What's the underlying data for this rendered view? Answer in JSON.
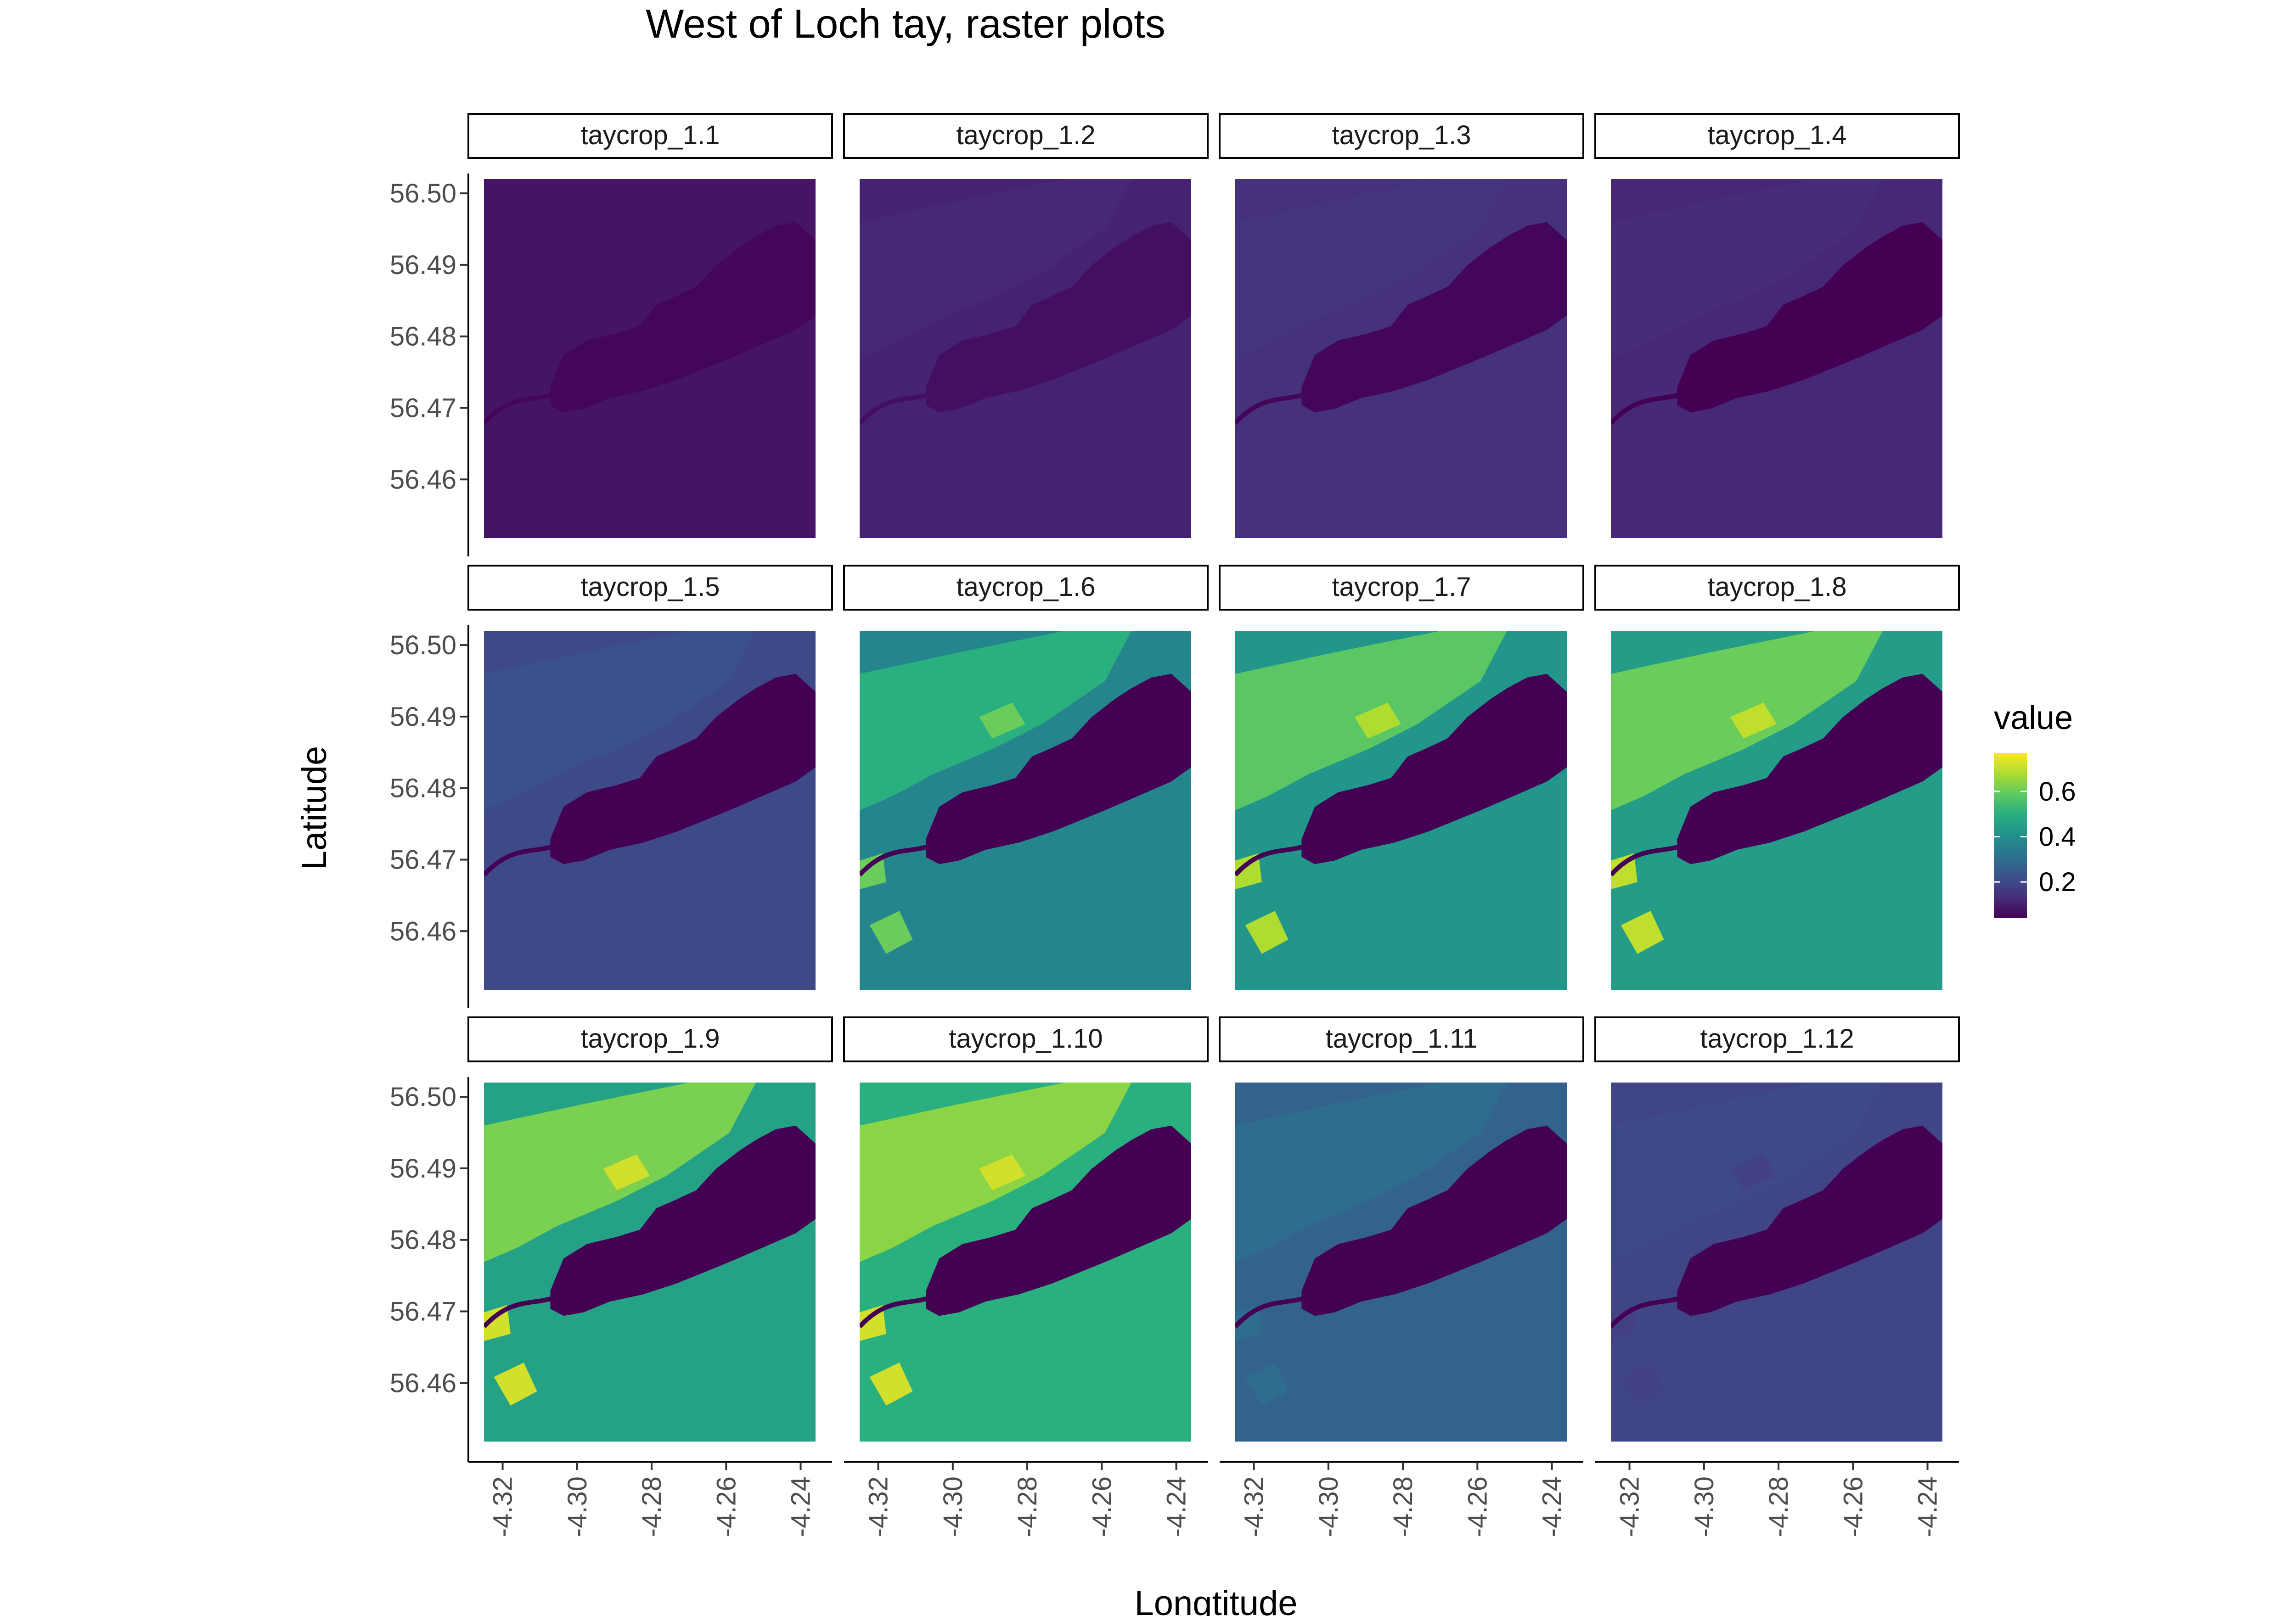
{
  "chart_data": {
    "type": "heatmap",
    "title": "West of Loch tay, raster plots",
    "xlabel": "Longtitude",
    "ylabel": "Latitude",
    "xlim": [
      -4.325,
      -4.236
    ],
    "ylim": [
      56.4518,
      56.502
    ],
    "x_ticks": [
      -4.32,
      -4.3,
      -4.28,
      -4.26,
      -4.24
    ],
    "x_tick_labels": [
      "-4.32",
      "-4.30",
      "-4.28",
      "-4.26",
      "-4.24"
    ],
    "y_ticks": [
      56.46,
      56.47,
      56.48,
      56.49,
      56.5
    ],
    "y_tick_labels": [
      "56.46",
      "56.47",
      "56.48",
      "56.49",
      "56.50"
    ],
    "grid": false,
    "facet_layout": {
      "rows": 3,
      "cols": 4
    },
    "colorscale": "viridis",
    "legend": {
      "title": "value",
      "placement": "right",
      "range": [
        0.04,
        0.77
      ],
      "ticks": [
        0.2,
        0.4,
        0.6
      ],
      "tick_labels": [
        "0.2",
        "0.4",
        "0.6"
      ],
      "colors": [
        "#440154",
        "#472d7b",
        "#3b528b",
        "#2c728e",
        "#21918c",
        "#28ae80",
        "#5ec962",
        "#addc30",
        "#fde725"
      ]
    },
    "panels": [
      {
        "name": "taycrop_1.1",
        "land_value": 0.08,
        "upland_value": 0.08,
        "water_value": 0.05,
        "bright_fields": 0.0
      },
      {
        "name": "taycrop_1.2",
        "land_value": 0.11,
        "upland_value": 0.12,
        "water_value": 0.07,
        "bright_fields": 0.0
      },
      {
        "name": "taycrop_1.3",
        "land_value": 0.14,
        "upland_value": 0.15,
        "water_value": 0.05,
        "bright_fields": 0.0
      },
      {
        "name": "taycrop_1.4",
        "land_value": 0.12,
        "upland_value": 0.13,
        "water_value": 0.04,
        "bright_fields": 0.0
      },
      {
        "name": "taycrop_1.5",
        "land_value": 0.2,
        "upland_value": 0.22,
        "water_value": 0.04,
        "bright_fields": 0.0
      },
      {
        "name": "taycrop_1.6",
        "land_value": 0.37,
        "upland_value": 0.5,
        "water_value": 0.04,
        "bright_fields": 0.6
      },
      {
        "name": "taycrop_1.7",
        "land_value": 0.42,
        "upland_value": 0.58,
        "water_value": 0.04,
        "bright_fields": 0.68
      },
      {
        "name": "taycrop_1.8",
        "land_value": 0.44,
        "upland_value": 0.6,
        "water_value": 0.04,
        "bright_fields": 0.7
      },
      {
        "name": "taycrop_1.9",
        "land_value": 0.46,
        "upland_value": 0.62,
        "water_value": 0.04,
        "bright_fields": 0.72
      },
      {
        "name": "taycrop_1.10",
        "land_value": 0.5,
        "upland_value": 0.64,
        "water_value": 0.04,
        "bright_fields": 0.72
      },
      {
        "name": "taycrop_1.11",
        "land_value": 0.27,
        "upland_value": 0.3,
        "water_value": 0.04,
        "bright_fields": 0.3
      },
      {
        "name": "taycrop_1.12",
        "land_value": 0.19,
        "upland_value": 0.2,
        "water_value": 0.04,
        "bright_fields": 0.18
      }
    ]
  }
}
